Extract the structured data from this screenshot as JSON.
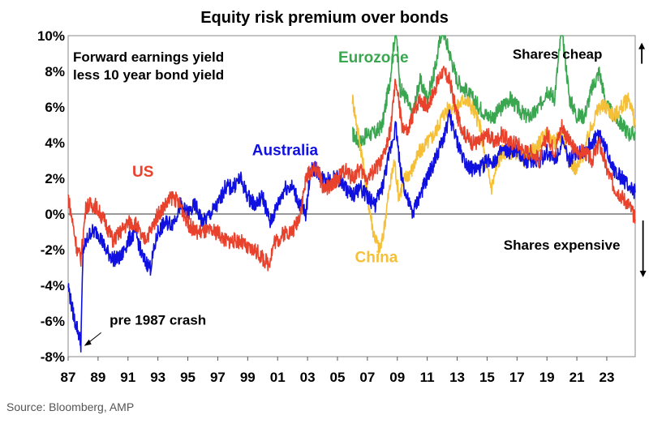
{
  "chart_data": {
    "type": "line",
    "title": "Equity risk premium over bonds",
    "subtitle_lines": [
      "Forward earnings yield",
      "less 10 year bond yield"
    ],
    "xlabel": "",
    "ylabel": "",
    "x_range": [
      1987,
      2024.9
    ],
    "ylim": [
      -8,
      10
    ],
    "y_ticks": [
      -8,
      -6,
      -4,
      -2,
      0,
      2,
      4,
      6,
      8,
      10
    ],
    "y_tick_labels": [
      "-8%",
      "-6%",
      "-4%",
      "-2%",
      "0%",
      "2%",
      "4%",
      "6%",
      "8%",
      "10%"
    ],
    "x_ticks": [
      1987,
      1989,
      1991,
      1993,
      1995,
      1997,
      1999,
      2001,
      2003,
      2005,
      2007,
      2009,
      2011,
      2013,
      2015,
      2017,
      2019,
      2021,
      2023
    ],
    "x_tick_labels": [
      "87",
      "89",
      "91",
      "93",
      "95",
      "97",
      "99",
      "01",
      "03",
      "05",
      "07",
      "09",
      "11",
      "13",
      "15",
      "17",
      "19",
      "21",
      "23"
    ],
    "series": [
      {
        "name": "US",
        "color": "#e8412c",
        "points": [
          [
            1987.0,
            1.0
          ],
          [
            1987.3,
            -0.5
          ],
          [
            1987.6,
            -2.0
          ],
          [
            1987.85,
            -2.5
          ],
          [
            1988.2,
            0.5
          ],
          [
            1988.8,
            0.5
          ],
          [
            1989.5,
            -0.5
          ],
          [
            1990.0,
            -1.5
          ],
          [
            1990.5,
            -1.0
          ],
          [
            1991.0,
            -0.5
          ],
          [
            1991.5,
            -0.5
          ],
          [
            1992.0,
            -1.5
          ],
          [
            1992.5,
            -1.0
          ],
          [
            1993.0,
            0.0
          ],
          [
            1993.5,
            0.5
          ],
          [
            1994.0,
            1.0
          ],
          [
            1994.5,
            0.5
          ],
          [
            1995.0,
            -0.5
          ],
          [
            1995.5,
            -1.0
          ],
          [
            1996.0,
            -1.0
          ],
          [
            1996.5,
            -1.0
          ],
          [
            1997.0,
            -1.0
          ],
          [
            1997.5,
            -1.5
          ],
          [
            1998.0,
            -1.5
          ],
          [
            1998.5,
            -1.5
          ],
          [
            1999.0,
            -2.0
          ],
          [
            1999.5,
            -2.0
          ],
          [
            2000.0,
            -2.5
          ],
          [
            2000.4,
            -2.8
          ],
          [
            2000.8,
            -1.5
          ],
          [
            2001.0,
            -1.5
          ],
          [
            2001.5,
            -1.0
          ],
          [
            2002.0,
            -1.0
          ],
          [
            2002.5,
            0.0
          ],
          [
            2002.9,
            2.0
          ],
          [
            2003.3,
            2.5
          ],
          [
            2003.7,
            2.5
          ],
          [
            2004.0,
            1.5
          ],
          [
            2004.5,
            1.5
          ],
          [
            2005.0,
            2.0
          ],
          [
            2005.5,
            2.5
          ],
          [
            2006.0,
            2.0
          ],
          [
            2006.5,
            2.5
          ],
          [
            2007.0,
            2.0
          ],
          [
            2007.5,
            2.5
          ],
          [
            2008.0,
            3.0
          ],
          [
            2008.5,
            4.5
          ],
          [
            2008.9,
            7.5
          ],
          [
            2009.3,
            5.0
          ],
          [
            2009.7,
            4.5
          ],
          [
            2010.0,
            5.5
          ],
          [
            2010.5,
            6.5
          ],
          [
            2011.0,
            6.0
          ],
          [
            2011.5,
            7.0
          ],
          [
            2012.0,
            8.0
          ],
          [
            2012.5,
            7.5
          ],
          [
            2013.0,
            5.5
          ],
          [
            2013.5,
            4.5
          ],
          [
            2014.0,
            4.0
          ],
          [
            2014.5,
            4.0
          ],
          [
            2015.0,
            4.5
          ],
          [
            2015.5,
            4.0
          ],
          [
            2016.0,
            4.5
          ],
          [
            2016.5,
            4.0
          ],
          [
            2017.0,
            4.0
          ],
          [
            2017.5,
            3.5
          ],
          [
            2018.0,
            3.5
          ],
          [
            2018.5,
            3.0
          ],
          [
            2019.0,
            4.5
          ],
          [
            2019.5,
            3.5
          ],
          [
            2020.0,
            5.0
          ],
          [
            2020.5,
            4.0
          ],
          [
            2021.0,
            3.5
          ],
          [
            2021.5,
            3.5
          ],
          [
            2022.0,
            3.0
          ],
          [
            2022.5,
            4.0
          ],
          [
            2023.0,
            2.5
          ],
          [
            2023.5,
            1.5
          ],
          [
            2024.0,
            1.0
          ],
          [
            2024.5,
            0.5
          ],
          [
            2024.9,
            -0.3
          ]
        ]
      },
      {
        "name": "Australia",
        "color": "#1010e0",
        "points": [
          [
            1987.0,
            -4.0
          ],
          [
            1987.2,
            -5.0
          ],
          [
            1987.45,
            -6.0
          ],
          [
            1987.65,
            -6.5
          ],
          [
            1987.85,
            -7.3
          ],
          [
            1988.0,
            -2.0
          ],
          [
            1988.5,
            -1.0
          ],
          [
            1989.0,
            -1.0
          ],
          [
            1989.5,
            -2.0
          ],
          [
            1990.0,
            -2.5
          ],
          [
            1990.5,
            -2.5
          ],
          [
            1991.0,
            -1.5
          ],
          [
            1991.5,
            -1.0
          ],
          [
            1992.0,
            -2.5
          ],
          [
            1992.5,
            -3.0
          ],
          [
            1993.0,
            -1.0
          ],
          [
            1993.5,
            -0.5
          ],
          [
            1994.0,
            -0.5
          ],
          [
            1994.5,
            0.5
          ],
          [
            1995.0,
            0.0
          ],
          [
            1995.5,
            0.5
          ],
          [
            1996.0,
            -0.5
          ],
          [
            1996.5,
            0.0
          ],
          [
            1997.0,
            0.5
          ],
          [
            1997.5,
            1.5
          ],
          [
            1998.0,
            1.5
          ],
          [
            1998.5,
            2.0
          ],
          [
            1999.0,
            1.0
          ],
          [
            1999.5,
            0.5
          ],
          [
            2000.0,
            1.0
          ],
          [
            2000.5,
            -0.5
          ],
          [
            2001.0,
            0.5
          ],
          [
            2001.5,
            1.5
          ],
          [
            2002.0,
            1.5
          ],
          [
            2002.5,
            0.5
          ],
          [
            2002.9,
            0.0
          ],
          [
            2003.2,
            2.5
          ],
          [
            2003.6,
            2.5
          ],
          [
            2004.0,
            2.0
          ],
          [
            2004.5,
            2.0
          ],
          [
            2005.0,
            2.0
          ],
          [
            2005.5,
            1.5
          ],
          [
            2006.0,
            1.0
          ],
          [
            2006.5,
            1.5
          ],
          [
            2007.0,
            1.0
          ],
          [
            2007.5,
            0.5
          ],
          [
            2008.0,
            1.5
          ],
          [
            2008.5,
            3.5
          ],
          [
            2008.9,
            5.0
          ],
          [
            2009.2,
            2.5
          ],
          [
            2009.6,
            1.0
          ],
          [
            2010.0,
            0.0
          ],
          [
            2010.5,
            1.0
          ],
          [
            2011.0,
            2.0
          ],
          [
            2011.5,
            3.0
          ],
          [
            2012.0,
            4.0
          ],
          [
            2012.5,
            5.5
          ],
          [
            2013.0,
            4.0
          ],
          [
            2013.5,
            3.0
          ],
          [
            2014.0,
            2.5
          ],
          [
            2014.5,
            2.5
          ],
          [
            2015.0,
            3.0
          ],
          [
            2015.5,
            3.0
          ],
          [
            2016.0,
            3.5
          ],
          [
            2016.5,
            3.5
          ],
          [
            2017.0,
            3.5
          ],
          [
            2017.5,
            3.0
          ],
          [
            2018.0,
            3.0
          ],
          [
            2018.5,
            3.0
          ],
          [
            2019.0,
            3.5
          ],
          [
            2019.5,
            3.0
          ],
          [
            2020.0,
            4.0
          ],
          [
            2020.5,
            3.0
          ],
          [
            2021.0,
            3.5
          ],
          [
            2021.5,
            3.5
          ],
          [
            2022.0,
            4.0
          ],
          [
            2022.5,
            4.5
          ],
          [
            2023.0,
            3.5
          ],
          [
            2023.5,
            2.5
          ],
          [
            2024.0,
            2.0
          ],
          [
            2024.5,
            1.5
          ],
          [
            2024.9,
            1.2
          ]
        ]
      },
      {
        "name": "Eurozone",
        "color": "#3aa650",
        "points": [
          [
            2006.0,
            4.5
          ],
          [
            2006.5,
            4.0
          ],
          [
            2007.0,
            4.5
          ],
          [
            2007.5,
            4.5
          ],
          [
            2008.0,
            5.0
          ],
          [
            2008.5,
            7.5
          ],
          [
            2008.9,
            10.5
          ],
          [
            2009.2,
            7.0
          ],
          [
            2009.6,
            6.5
          ],
          [
            2010.0,
            5.5
          ],
          [
            2010.5,
            7.5
          ],
          [
            2011.0,
            6.5
          ],
          [
            2011.5,
            8.0
          ],
          [
            2012.0,
            10.5
          ],
          [
            2012.5,
            9.0
          ],
          [
            2013.0,
            7.5
          ],
          [
            2013.5,
            7.0
          ],
          [
            2014.0,
            6.5
          ],
          [
            2014.5,
            6.0
          ],
          [
            2015.0,
            5.5
          ],
          [
            2015.5,
            5.5
          ],
          [
            2016.0,
            6.0
          ],
          [
            2016.5,
            6.5
          ],
          [
            2017.0,
            6.0
          ],
          [
            2017.5,
            5.5
          ],
          [
            2018.0,
            5.5
          ],
          [
            2018.5,
            6.0
          ],
          [
            2019.0,
            7.0
          ],
          [
            2019.5,
            6.5
          ],
          [
            2020.0,
            10.5
          ],
          [
            2020.5,
            6.5
          ],
          [
            2021.0,
            5.5
          ],
          [
            2021.5,
            5.5
          ],
          [
            2022.0,
            7.0
          ],
          [
            2022.5,
            8.0
          ],
          [
            2023.0,
            6.0
          ],
          [
            2023.5,
            5.5
          ],
          [
            2024.0,
            5.0
          ],
          [
            2024.5,
            4.5
          ],
          [
            2024.9,
            4.5
          ]
        ]
      },
      {
        "name": "China",
        "color": "#f5c038",
        "points": [
          [
            2006.0,
            6.5
          ],
          [
            2006.3,
            5.0
          ],
          [
            2006.6,
            3.5
          ],
          [
            2007.0,
            1.0
          ],
          [
            2007.4,
            -1.0
          ],
          [
            2007.8,
            -2.0
          ],
          [
            2008.0,
            -1.5
          ],
          [
            2008.4,
            1.0
          ],
          [
            2008.8,
            3.0
          ],
          [
            2009.1,
            1.0
          ],
          [
            2009.5,
            2.0
          ],
          [
            2010.0,
            2.5
          ],
          [
            2010.5,
            3.5
          ],
          [
            2011.0,
            4.0
          ],
          [
            2011.5,
            4.5
          ],
          [
            2012.0,
            5.5
          ],
          [
            2012.5,
            6.0
          ],
          [
            2013.0,
            6.0
          ],
          [
            2013.5,
            6.5
          ],
          [
            2014.0,
            6.0
          ],
          [
            2014.5,
            5.0
          ],
          [
            2015.0,
            2.5
          ],
          [
            2015.3,
            1.5
          ],
          [
            2015.6,
            2.5
          ],
          [
            2016.0,
            3.5
          ],
          [
            2016.5,
            3.5
          ],
          [
            2017.0,
            3.5
          ],
          [
            2017.5,
            3.0
          ],
          [
            2018.0,
            3.5
          ],
          [
            2018.5,
            4.0
          ],
          [
            2019.0,
            4.5
          ],
          [
            2019.5,
            4.0
          ],
          [
            2020.0,
            4.5
          ],
          [
            2020.5,
            3.0
          ],
          [
            2021.0,
            2.5
          ],
          [
            2021.5,
            3.5
          ],
          [
            2022.0,
            5.0
          ],
          [
            2022.5,
            6.0
          ],
          [
            2023.0,
            6.0
          ],
          [
            2023.5,
            5.5
          ],
          [
            2024.0,
            6.0
          ],
          [
            2024.5,
            6.5
          ],
          [
            2024.9,
            5.0
          ]
        ]
      }
    ],
    "series_labels": [
      {
        "text": "US",
        "color": "#e8412c",
        "at": [
          1992.0,
          2.1
        ]
      },
      {
        "text": "Australia",
        "color": "#1010e0",
        "at": [
          2001.5,
          3.3
        ]
      },
      {
        "text": "Eurozone",
        "color": "#3aa650",
        "at": [
          2007.4,
          8.5
        ]
      },
      {
        "text": "China",
        "color": "#f5c038",
        "at": [
          2007.6,
          -2.7
        ]
      }
    ],
    "annotations": [
      {
        "text": "Shares cheap",
        "at": [
          2019.7,
          8.7
        ],
        "arrow": "up"
      },
      {
        "text": "Shares expensive",
        "at": [
          2020.0,
          -2.0
        ],
        "arrow": "down"
      },
      {
        "text": "pre 1987 crash",
        "at": [
          1993.0,
          -6.2
        ],
        "points_to": [
          1987.85,
          -7.4
        ]
      }
    ],
    "zero_line": true
  },
  "source": "Source: Bloomberg, AMP"
}
